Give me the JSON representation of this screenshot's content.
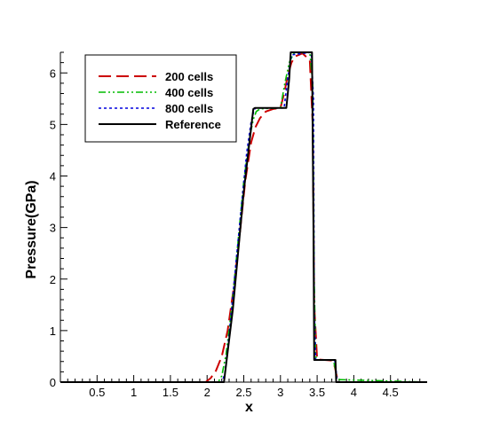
{
  "chart_data": {
    "type": "line",
    "xlabel": "x",
    "ylabel": "Pressure(GPa)",
    "xlim": [
      0,
      5
    ],
    "ylim": [
      0,
      6.4
    ],
    "xticks": [
      0.5,
      1,
      1.5,
      2,
      2.5,
      3,
      3.5,
      4,
      4.5
    ],
    "xtick_labels": [
      "0.5",
      "1",
      "1.5",
      "2",
      "2.5",
      "3",
      "3.5",
      "4",
      "4.5"
    ],
    "yticks": [
      0,
      1,
      2,
      3,
      4,
      5,
      6
    ],
    "ytick_labels": [
      "0",
      "1",
      "2",
      "3",
      "4",
      "5",
      "6"
    ],
    "grid": false,
    "legend_position": "top-left",
    "series": [
      {
        "name": "200 cells",
        "color": "#cc0000",
        "dash": "dashed",
        "x": [
          0,
          1.98,
          2.05,
          2.12,
          2.2,
          2.28,
          2.36,
          2.44,
          2.52,
          2.6,
          2.66,
          2.72,
          2.8,
          2.9,
          3.0,
          3.05,
          3.1,
          3.15,
          3.2,
          3.3,
          3.4,
          3.44,
          3.46,
          3.5,
          3.6,
          3.7,
          3.74,
          3.77,
          3.8,
          5.0
        ],
        "y": [
          0,
          0,
          0.08,
          0.22,
          0.5,
          1.0,
          1.8,
          2.8,
          3.9,
          4.65,
          4.95,
          5.12,
          5.25,
          5.3,
          5.32,
          5.6,
          5.95,
          6.2,
          6.32,
          6.38,
          6.25,
          5.0,
          1.5,
          0.44,
          0.43,
          0.42,
          0.3,
          0.1,
          0,
          0
        ]
      },
      {
        "name": "400 cells",
        "color": "#00bb00",
        "dash": "dashdotdot",
        "x": [
          0,
          2.15,
          2.2,
          2.26,
          2.34,
          2.42,
          2.5,
          2.58,
          2.63,
          2.67,
          2.72,
          2.8,
          3.0,
          3.06,
          3.12,
          3.18,
          3.4,
          3.44,
          3.46,
          3.48,
          3.5,
          3.72,
          3.75,
          3.77,
          5.0
        ],
        "y": [
          0,
          0,
          0.12,
          0.55,
          1.5,
          2.7,
          3.9,
          4.75,
          5.1,
          5.25,
          5.3,
          5.31,
          5.32,
          5.8,
          6.2,
          6.38,
          6.4,
          5.8,
          2.0,
          0.5,
          0.43,
          0.43,
          0.25,
          0.05,
          0
        ]
      },
      {
        "name": "800 cells",
        "color": "#0000dd",
        "dash": "dotted",
        "x": [
          0,
          2.2,
          2.24,
          2.3,
          2.38,
          2.46,
          2.54,
          2.6,
          2.64,
          2.66,
          3.05,
          3.1,
          3.15,
          3.42,
          3.45,
          3.46,
          3.48,
          3.74,
          3.76,
          3.77,
          5.0
        ],
        "y": [
          0,
          0,
          0.15,
          0.9,
          2.1,
          3.3,
          4.45,
          5.05,
          5.28,
          5.32,
          5.32,
          5.9,
          6.35,
          6.4,
          5.5,
          1.5,
          0.43,
          0.43,
          0.2,
          0,
          0
        ]
      },
      {
        "name": "Reference",
        "color": "#000000",
        "dash": "solid",
        "x": [
          0,
          2.23,
          2.35,
          2.5,
          2.63,
          2.65,
          3.08,
          3.1,
          3.12,
          3.14,
          3.43,
          3.45,
          3.46,
          3.75,
          3.76,
          5.0
        ],
        "y": [
          0,
          0,
          1.4,
          3.7,
          5.3,
          5.32,
          5.32,
          5.6,
          5.9,
          6.4,
          6.4,
          3.0,
          0.43,
          0.43,
          0,
          0
        ]
      }
    ]
  }
}
